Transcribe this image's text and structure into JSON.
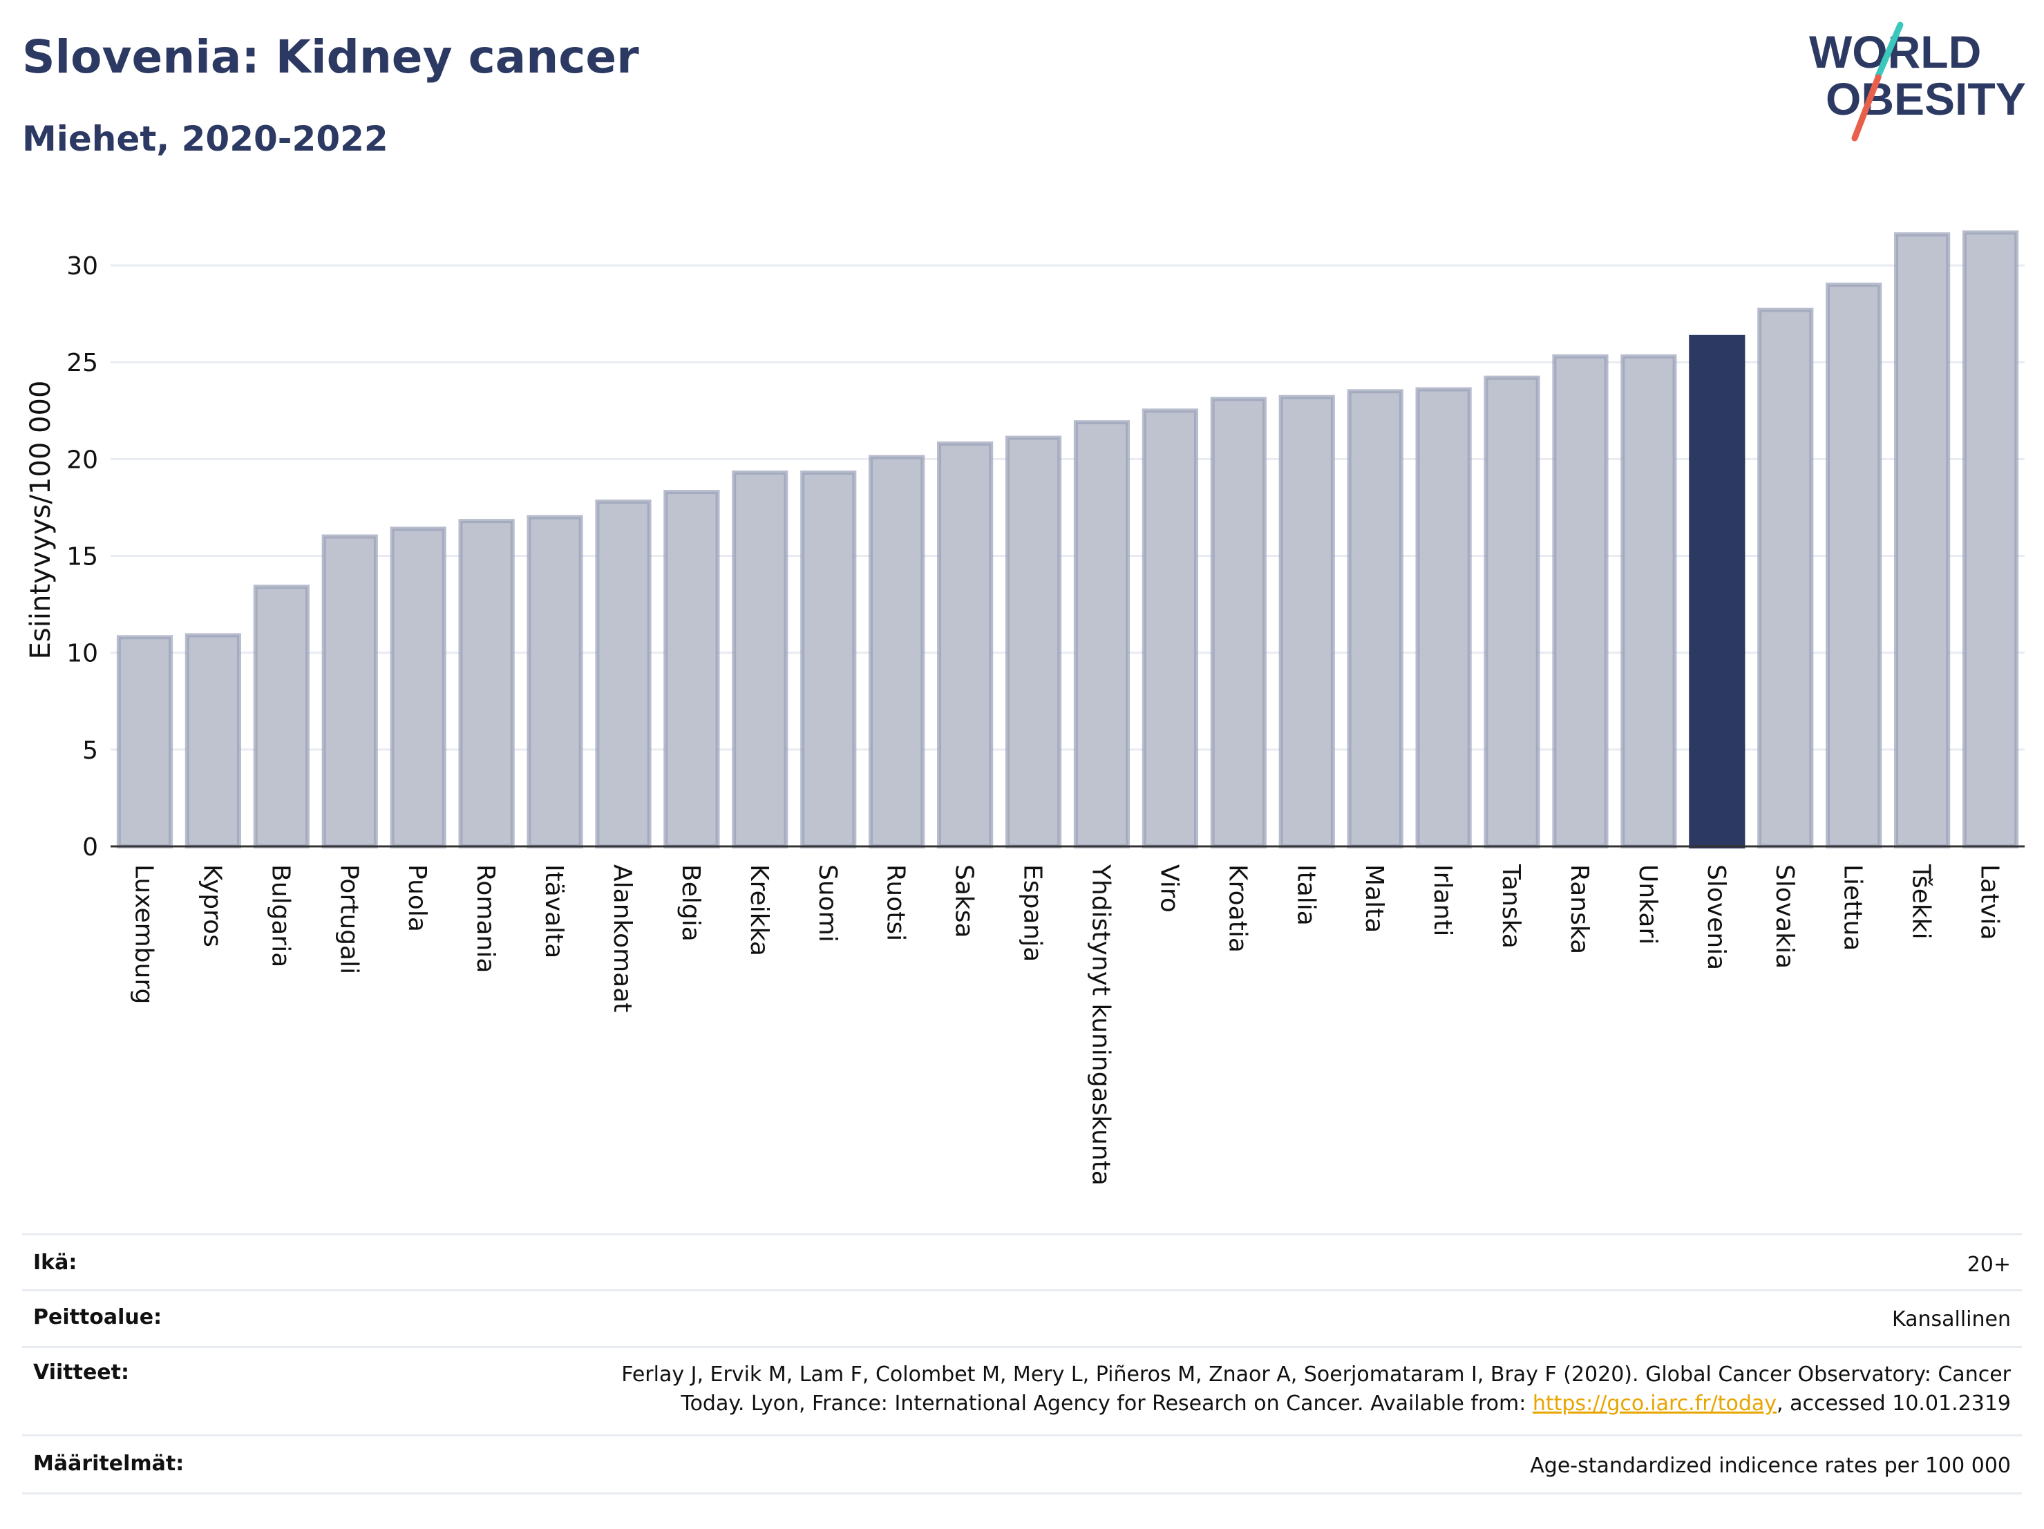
{
  "header": {
    "title": "Slovenia: Kidney cancer",
    "subtitle": "Miehet, 2020-2022"
  },
  "logo": {
    "line1": "WORLD",
    "line2": "OBESITY"
  },
  "colors": {
    "highlight": "#2c3a63",
    "bar": "#bfc3d0",
    "bar_edge": "#9aa1b8",
    "grid": "#e8ebf2",
    "accent_teal": "#3cc7bd",
    "accent_red": "#e8604c"
  },
  "chart_data": {
    "type": "bar",
    "ylabel": "Esiintyvyys/100 000",
    "ylim": [
      0,
      33
    ],
    "yticks": [
      0,
      5,
      10,
      15,
      20,
      25,
      30
    ],
    "grid": true,
    "highlight": "Slovenia",
    "categories": [
      "Luxemburg",
      "Kypros",
      "Bulgaria",
      "Portugali",
      "Puola",
      "Romania",
      "Itävalta",
      "Alankomaat",
      "Belgia",
      "Kreikka",
      "Suomi",
      "Ruotsi",
      "Saksa",
      "Espanja",
      "Yhdistynyt kuningaskunta",
      "Viro",
      "Kroatia",
      "Italia",
      "Malta",
      "Irlanti",
      "Tanska",
      "Ranska",
      "Unkari",
      "Slovenia",
      "Slovakia",
      "Liettua",
      "Tšekki",
      "Latvia"
    ],
    "values": [
      10.8,
      10.9,
      13.4,
      16.0,
      16.4,
      16.8,
      17.0,
      17.8,
      18.3,
      19.3,
      19.3,
      20.1,
      20.8,
      21.1,
      21.9,
      22.5,
      23.1,
      23.2,
      23.5,
      23.6,
      24.2,
      25.3,
      25.3,
      26.3,
      27.7,
      29.0,
      31.6,
      31.7
    ]
  },
  "meta": [
    {
      "key": "Ikä:",
      "value": "20+"
    },
    {
      "key": "Peittoalue:",
      "value": "Kansallinen"
    },
    {
      "key": "Viitteet:",
      "value_line1": "Ferlay J, Ervik M, Lam F, Colombet M, Mery L, Piñeros M, Znaor A, Soerjomataram I, Bray F (2020). Global Cancer Observatory: Cancer",
      "value_line2_pre": "Today. Lyon, France: International Agency for Research on Cancer. Available from: ",
      "link": "https://gco.iarc.fr/today",
      "value_line2_post": ", accessed 10.01.2319"
    },
    {
      "key": "Määritelmät:",
      "value": "Age-standardized indicence rates per 100 000"
    }
  ]
}
